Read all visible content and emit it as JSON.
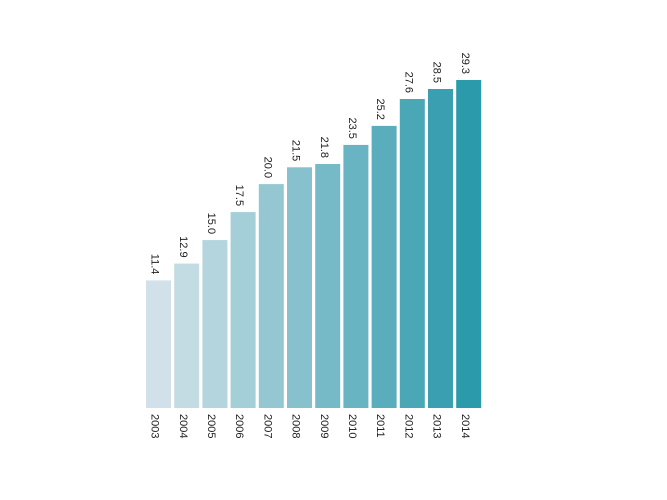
{
  "chart_data": {
    "type": "bar",
    "categories": [
      "2003",
      "2004",
      "2005",
      "2006",
      "2007",
      "2008",
      "2009",
      "2010",
      "2011",
      "2012",
      "2013",
      "2014"
    ],
    "values": [
      11.4,
      12.9,
      15.0,
      17.5,
      20.0,
      21.5,
      21.8,
      23.5,
      25.2,
      27.6,
      28.5,
      29.3
    ],
    "value_labels": [
      "11.4",
      "12.9",
      "15.0",
      "17.5",
      "20.0",
      "21.5",
      "21.8",
      "23.5",
      "25.2",
      "27.6",
      "28.5",
      "29.3"
    ],
    "color_start": "#d2e1e9",
    "color_end": "#2b9aab",
    "ylim": [
      0,
      29.3
    ],
    "grid": false,
    "legend": "none"
  }
}
